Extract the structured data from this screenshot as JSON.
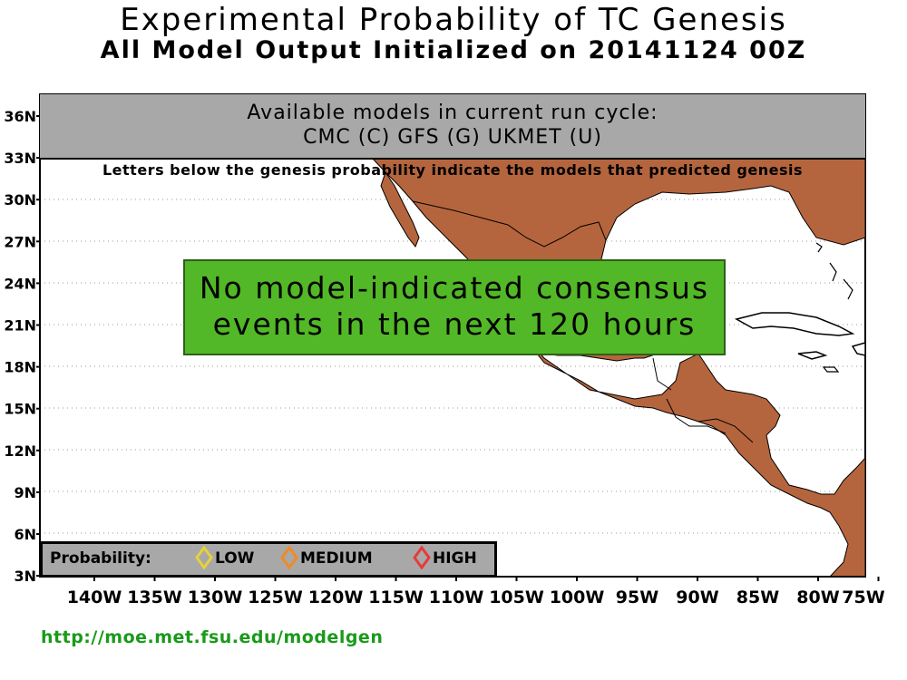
{
  "header": {
    "title": "Experimental Probability of TC Genesis",
    "subtitle": "All Model Output Initialized on 20141124 00Z"
  },
  "map": {
    "lat_labels": [
      "36N",
      "33N",
      "30N",
      "27N",
      "24N",
      "21N",
      "18N",
      "15N",
      "12N",
      "9N",
      "6N",
      "3N"
    ],
    "lon_labels": [
      "140W",
      "135W",
      "130W",
      "125W",
      "120W",
      "115W",
      "110W",
      "105W",
      "100W",
      "95W",
      "90W",
      "85W",
      "80W",
      "75W"
    ],
    "land_color": "#b5653d",
    "ocean_color": "#ffffff"
  },
  "models_banner": {
    "line1": "Available models in current run cycle:",
    "line2": "CMC (C) GFS (G)  UKMET (U)"
  },
  "note": "Letters below the genesis probability indicate the models that predicted genesis",
  "consensus_box": {
    "line1": "No model-indicated consensus",
    "line2": "events in the next 120 hours",
    "color": "#52b827"
  },
  "legend": {
    "label": "Probability:",
    "items": [
      {
        "label": "LOW",
        "color": "#e6d23a"
      },
      {
        "label": "MEDIUM",
        "color": "#f08a24"
      },
      {
        "label": "HIGH",
        "color": "#e53b3b"
      }
    ]
  },
  "footer": {
    "url": "http://moe.met.fsu.edu/modelgen"
  }
}
